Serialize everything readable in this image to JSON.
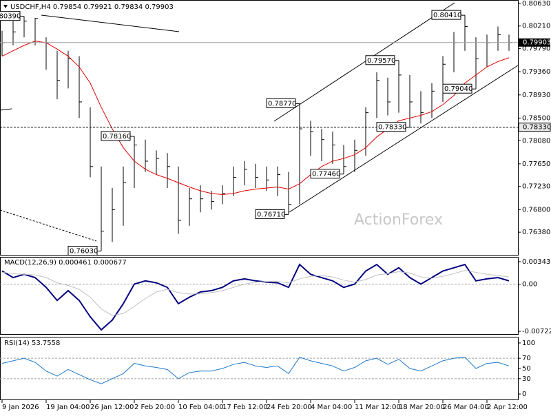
{
  "chart_data": [
    {
      "type": "hlc",
      "title": "USDCHF,H4  0.79854 0.79921 0.79834 0.79903",
      "bar_color": "#000000",
      "high": [
        0.8012,
        0.803,
        0.8039,
        0.8036,
        0.8,
        0.7975,
        0.7975,
        0.7965,
        0.787,
        0.776,
        0.772,
        0.776,
        0.7816,
        0.781,
        0.779,
        0.7785,
        0.776,
        0.772,
        0.7725,
        0.7715,
        0.7725,
        0.776,
        0.777,
        0.7765,
        0.776,
        0.776,
        0.775,
        0.7877,
        0.7845,
        0.783,
        0.7825,
        0.78,
        0.781,
        0.787,
        0.7935,
        0.7925,
        0.7957,
        0.793,
        0.79,
        0.7915,
        0.7965,
        0.801,
        0.8041,
        0.8,
        0.8005,
        0.802,
        0.8005
      ],
      "low": [
        0.7965,
        0.7985,
        0.8,
        0.7985,
        0.794,
        0.7885,
        0.7905,
        0.785,
        0.774,
        0.7603,
        0.762,
        0.765,
        0.772,
        0.775,
        0.7745,
        0.772,
        0.7635,
        0.765,
        0.7675,
        0.768,
        0.769,
        0.7705,
        0.7725,
        0.772,
        0.7715,
        0.7705,
        0.7671,
        0.769,
        0.778,
        0.777,
        0.7765,
        0.7746,
        0.775,
        0.778,
        0.785,
        0.7855,
        0.786,
        0.7833,
        0.784,
        0.785,
        0.788,
        0.7935,
        0.7975,
        0.7904,
        0.7945,
        0.7975,
        0.7975
      ],
      "close": [
        0.799,
        0.801,
        0.803,
        0.8035,
        0.799,
        0.792,
        0.796,
        0.788,
        0.776,
        0.764,
        0.768,
        0.773,
        0.78,
        0.777,
        0.7775,
        0.776,
        0.766,
        0.77,
        0.77,
        0.7695,
        0.771,
        0.774,
        0.7755,
        0.774,
        0.7735,
        0.7745,
        0.769,
        0.783,
        0.7825,
        0.781,
        0.78,
        0.776,
        0.779,
        0.786,
        0.792,
        0.788,
        0.793,
        0.788,
        0.786,
        0.79,
        0.795,
        0.799,
        0.802,
        0.796,
        0.799,
        0.8005,
        0.799
      ],
      "sma": {
        "color": "#e00000",
        "values": [
          0.7965,
          0.7975,
          0.7985,
          0.7993,
          0.799,
          0.7978,
          0.7965,
          0.7945,
          0.7915,
          0.787,
          0.783,
          0.7795,
          0.777,
          0.7755,
          0.7745,
          0.7738,
          0.773,
          0.7722,
          0.7715,
          0.771,
          0.7708,
          0.771,
          0.7715,
          0.7718,
          0.772,
          0.7722,
          0.7718,
          0.7728,
          0.7745,
          0.776,
          0.777,
          0.7775,
          0.7782,
          0.7795,
          0.7815,
          0.783,
          0.7845,
          0.785,
          0.7855,
          0.7862,
          0.7875,
          0.7892,
          0.7915,
          0.793,
          0.7945,
          0.7955,
          0.7962
        ]
      },
      "ylim": [
        0.7596,
        0.8068
      ],
      "yticks": [
        {
          "value": 0.8063,
          "label": "0.80630"
        },
        {
          "value": 0.8021,
          "label": "0.80210"
        },
        {
          "value": 0.7979,
          "label": "0.79790"
        },
        {
          "value": 0.7936,
          "label": "0.79360"
        },
        {
          "value": 0.7893,
          "label": "0.78930"
        },
        {
          "value": 0.785,
          "label": "0.78500"
        },
        {
          "value": 0.7808,
          "label": "0.78080"
        },
        {
          "value": 0.7765,
          "label": "0.77650"
        },
        {
          "value": 0.7723,
          "label": "0.77230"
        },
        {
          "value": 0.768,
          "label": "0.76800"
        },
        {
          "value": 0.7638,
          "label": "0.76380"
        }
      ],
      "current_price": 0.79903,
      "levels": [
        {
          "value": 0.7833,
          "label": "0.78330"
        }
      ],
      "annotations": [
        {
          "x": 2,
          "value": 0.8039,
          "label": "0.80390"
        },
        {
          "x": 9,
          "value": 0.7603,
          "label": "0.76030"
        },
        {
          "x": 12,
          "value": 0.7816,
          "label": "0.78160"
        },
        {
          "x": 26,
          "value": 0.7671,
          "label": "0.76710"
        },
        {
          "x": 27,
          "value": 0.7877,
          "label": "0.78770"
        },
        {
          "x": 31,
          "value": 0.7746,
          "label": "0.77460"
        },
        {
          "x": 36,
          "value": 0.7957,
          "label": "0.79570"
        },
        {
          "x": 37,
          "value": 0.7833,
          "label": "0.78330"
        },
        {
          "x": 42,
          "value": 0.8041,
          "label": "0.80410"
        },
        {
          "x": 43,
          "value": 0.7904,
          "label": "0.79040"
        }
      ],
      "watermark": "ActionForex"
    },
    {
      "type": "line",
      "title": "MACD(12,26,9) 0.000461 0.000677",
      "series": [
        {
          "color": "#000080",
          "values": [
            0.002,
            0.001,
            0.0015,
            0.001,
            -0.0005,
            -0.0025,
            -0.001,
            -0.0025,
            -0.005,
            -0.007,
            -0.0055,
            -0.003,
            0.0,
            0.0005,
            0.0002,
            -0.0005,
            -0.003,
            -0.002,
            -0.0012,
            -0.001,
            -0.0005,
            0.0005,
            0.0008,
            0.0005,
            0.0003,
            0.0002,
            -0.0005,
            0.003,
            0.0015,
            0.001,
            0.0005,
            -0.0005,
            0.0,
            0.002,
            0.003,
            0.0015,
            0.0025,
            0.001,
            0.0,
            0.001,
            0.002,
            0.0025,
            0.003,
            0.0005,
            0.0008,
            0.001,
            0.0005
          ]
        },
        {
          "color": "#c0c0c0",
          "values": [
            0.0018,
            0.0016,
            0.0015,
            0.0014,
            0.001,
            0.0002,
            -0.0002,
            -0.0008,
            -0.002,
            -0.0038,
            -0.0048,
            -0.0045,
            -0.0034,
            -0.0022,
            -0.0012,
            -0.0008,
            -0.0013,
            -0.0015,
            -0.0015,
            -0.0013,
            -0.001,
            -0.0005,
            0.0,
            0.0003,
            0.0004,
            0.0004,
            0.0002,
            0.0008,
            0.0012,
            0.0013,
            0.0011,
            0.0006,
            0.0003,
            0.0007,
            0.0014,
            0.0016,
            0.0019,
            0.0017,
            0.0011,
            0.0009,
            0.0012,
            0.0016,
            0.0021,
            0.0018,
            0.0015,
            0.0013,
            0.0011
          ]
        }
      ],
      "ylim": [
        -0.007641,
        0.004059
      ],
      "yticks": [
        0.003432,
        {
          "value": 0,
          "label": "0.00"
        },
        -0.007223
      ],
      "dashed_levels": [
        0
      ]
    },
    {
      "type": "line",
      "title": "RSI(14) 53.7558",
      "series": [
        {
          "color": "#1e78c8",
          "values": [
            60,
            65,
            70,
            62,
            45,
            35,
            48,
            38,
            28,
            20,
            30,
            40,
            60,
            55,
            52,
            48,
            30,
            42,
            45,
            45,
            50,
            58,
            62,
            55,
            52,
            55,
            40,
            72,
            65,
            60,
            55,
            45,
            52,
            65,
            70,
            58,
            68,
            50,
            45,
            55,
            65,
            70,
            72,
            50,
            60,
            62,
            55
          ]
        }
      ],
      "ylim": [
        -10.7,
        110.7
      ],
      "yticks": [
        100,
        70,
        50,
        30,
        0
      ],
      "dashed_levels": [
        70,
        30
      ],
      "xticks": [
        {
          "value": 0,
          "label": "9 Jan 2026"
        },
        {
          "value": 4,
          "label": "19 Jan 04:00"
        },
        {
          "value": 8,
          "label": "26 Jan 12:00"
        },
        {
          "value": 12,
          "label": "2 Feb 20:00"
        },
        {
          "value": 16,
          "label": "10 Feb 04:00"
        },
        {
          "value": 20,
          "label": "17 Feb 12:00"
        },
        {
          "value": 24,
          "label": "24 Feb 20:00"
        },
        {
          "value": 28,
          "label": "4 Mar 04:00"
        },
        {
          "value": 32,
          "label": "11 Mar 12:00"
        },
        {
          "value": 36,
          "label": "18 Mar 20:00"
        },
        {
          "value": 40,
          "label": "26 Mar 04:00"
        },
        {
          "value": 44,
          "label": "2 Apr 12:00"
        }
      ]
    }
  ]
}
